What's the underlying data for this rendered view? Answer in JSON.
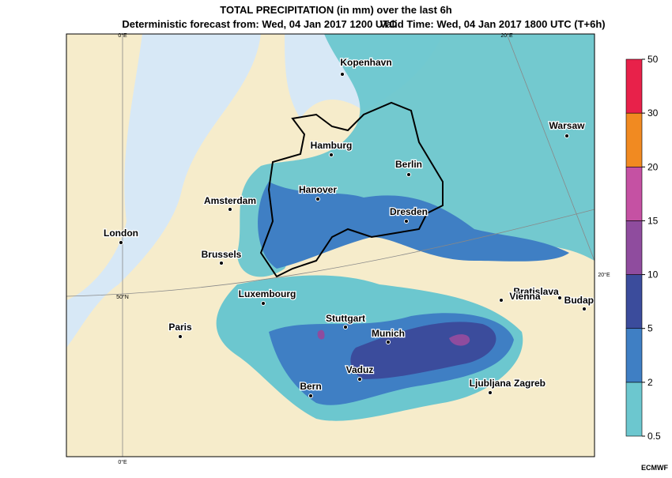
{
  "header": {
    "title": "TOTAL PRECIPITATION (in mm) over the last 6h",
    "forecast": "Deterministic forecast from: Wed, 04 Jan 2017 1200 UTC",
    "valid": "Valid Time: Wed, 04 Jan 2017 1800 UTC (T+6h)"
  },
  "map": {
    "graticule": [
      "0°E",
      "20°E",
      "50°N",
      "20°E",
      "0°E"
    ],
    "cities": [
      {
        "label": "Kopenhavn"
      },
      {
        "label": "Hamburg"
      },
      {
        "label": "Berlin"
      },
      {
        "label": "Warsaw"
      },
      {
        "label": "Hanover"
      },
      {
        "label": "Amsterdam"
      },
      {
        "label": "Dresden"
      },
      {
        "label": "London"
      },
      {
        "label": "Brussels"
      },
      {
        "label": "Luxembourg"
      },
      {
        "label": "Bratislava"
      },
      {
        "label": "Vienna"
      },
      {
        "label": "Budapest"
      },
      {
        "label": "Stuttgart"
      },
      {
        "label": "Paris"
      },
      {
        "label": "Munich"
      },
      {
        "label": "Vaduz"
      },
      {
        "label": "Bern"
      },
      {
        "label": "Ljubljana"
      },
      {
        "label": "Zagreb"
      }
    ]
  },
  "legend": {
    "ticks": [
      0.5,
      2,
      5,
      10,
      15,
      20,
      30,
      50
    ],
    "colors": [
      "#6cc7cf",
      "#3f7fc4",
      "#3b4c9c",
      "#8f4c9e",
      "#c551a3",
      "#f18a21",
      "#e8214a"
    ]
  },
  "credit": "ECMWF"
}
